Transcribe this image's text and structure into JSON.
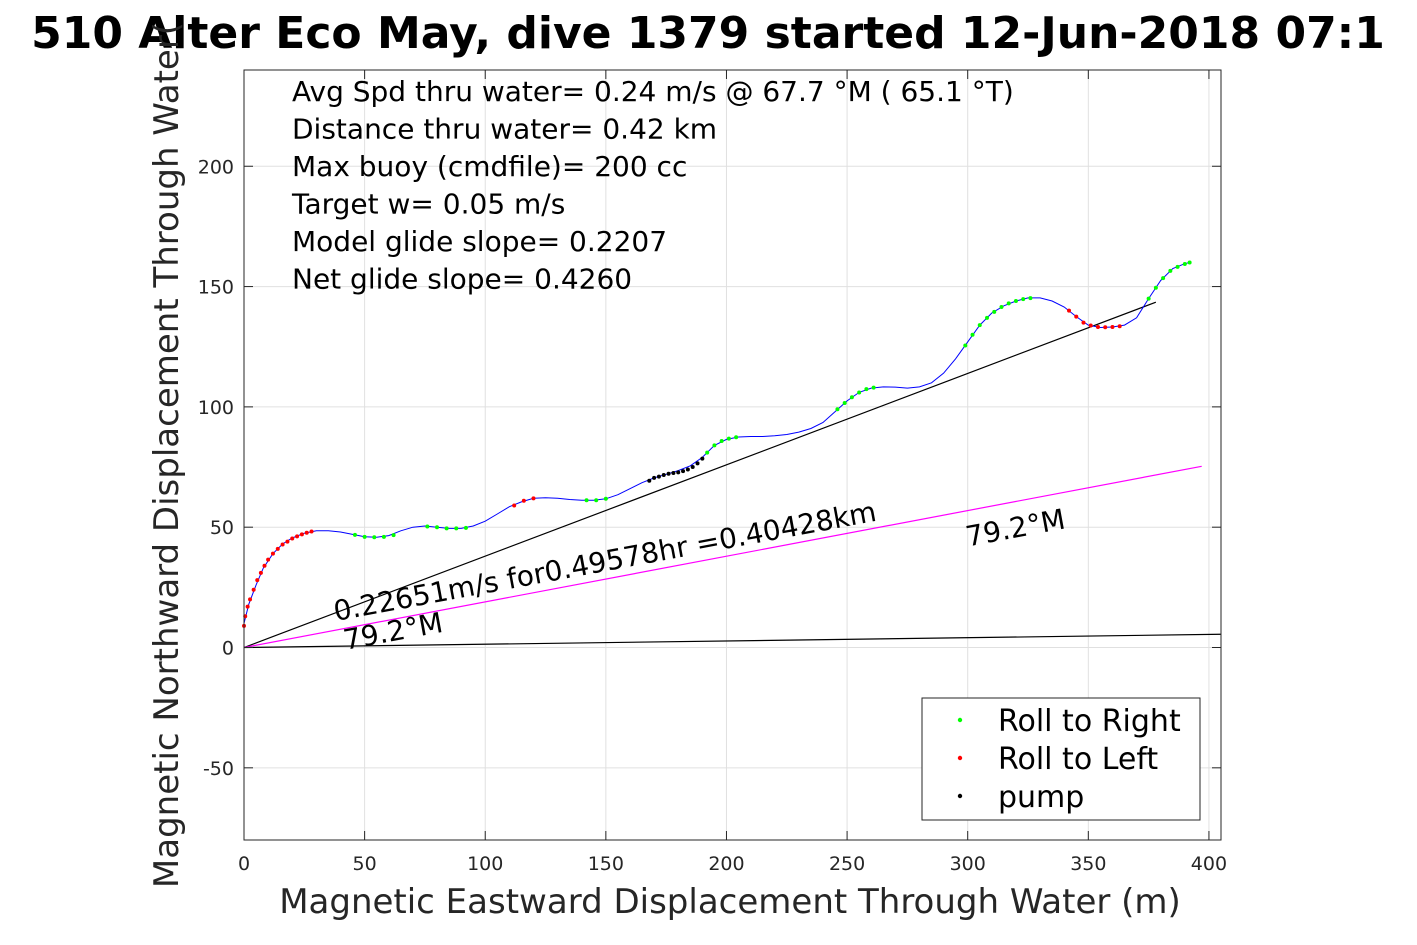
{
  "chart_data": {
    "type": "scatter",
    "title": "510 Alter Eco May, dive 1379 started 12-Jun-2018 07:1",
    "xlabel": "Magnetic Eastward Displacement Through Water (m)",
    "ylabel": "Magnetic Northward Displacement Through Water(",
    "xlim": [
      0,
      405
    ],
    "ylim": [
      -80,
      240
    ],
    "xticks": [
      0,
      50,
      100,
      150,
      200,
      250,
      300,
      350,
      400
    ],
    "yticks": [
      -50,
      0,
      50,
      100,
      150,
      200
    ],
    "grid": true,
    "info_lines": [
      "Avg Spd thru water=  0.24 m/s @  67.7 °M ( 65.1 °T)",
      "Distance thru water=  0.42 km",
      "Max buoy (cmdfile)= 200 cc",
      "Target w= 0.05 m/s",
      "Model glide slope= 0.2207",
      "Net glide slope= 0.4260"
    ],
    "annotations": [
      {
        "text": "0.22651m/s for0.49578hr =0.40428km",
        "x": 38,
        "y": 11,
        "angle_deg": 10.5
      },
      {
        "text": "79.2°M",
        "x": 42,
        "y": -1,
        "angle_deg": 10.5
      },
      {
        "text": "79.2°M",
        "x": 300,
        "y": 42,
        "angle_deg": 10.5
      }
    ],
    "track": {
      "name": "track",
      "color": "#0000ff",
      "points": [
        [
          0,
          0
        ],
        [
          0,
          10
        ],
        [
          2,
          18
        ],
        [
          5,
          26
        ],
        [
          8,
          33
        ],
        [
          12,
          39
        ],
        [
          16,
          43
        ],
        [
          20,
          45.5
        ],
        [
          25,
          47.5
        ],
        [
          30,
          48.5
        ],
        [
          35,
          48.5
        ],
        [
          40,
          48
        ],
        [
          45,
          47
        ],
        [
          50,
          46
        ],
        [
          55,
          45.8
        ],
        [
          60,
          46.5
        ],
        [
          65,
          48.5
        ],
        [
          70,
          50
        ],
        [
          75,
          50.5
        ],
        [
          80,
          50
        ],
        [
          85,
          49.5
        ],
        [
          90,
          49.5
        ],
        [
          95,
          50.5
        ],
        [
          100,
          52.5
        ],
        [
          105,
          55.5
        ],
        [
          110,
          58.5
        ],
        [
          115,
          60.5
        ],
        [
          120,
          62
        ],
        [
          125,
          62.2
        ],
        [
          130,
          62
        ],
        [
          135,
          61.5
        ],
        [
          140,
          61.2
        ],
        [
          145,
          61.2
        ],
        [
          150,
          61.8
        ],
        [
          155,
          63.5
        ],
        [
          160,
          66
        ],
        [
          165,
          68.5
        ],
        [
          170,
          70.5
        ],
        [
          175,
          72
        ],
        [
          180,
          73.5
        ],
        [
          185,
          75.5
        ],
        [
          190,
          79
        ],
        [
          195,
          84
        ],
        [
          200,
          86.5
        ],
        [
          205,
          87.5
        ],
        [
          210,
          87.7
        ],
        [
          215,
          87.7
        ],
        [
          220,
          88
        ],
        [
          225,
          88.5
        ],
        [
          230,
          89.5
        ],
        [
          235,
          91
        ],
        [
          240,
          93.5
        ],
        [
          245,
          98
        ],
        [
          250,
          102.5
        ],
        [
          255,
          106
        ],
        [
          260,
          107.8
        ],
        [
          265,
          108.3
        ],
        [
          270,
          108.2
        ],
        [
          275,
          107.8
        ],
        [
          280,
          108.3
        ],
        [
          285,
          110
        ],
        [
          290,
          114
        ],
        [
          295,
          120
        ],
        [
          300,
          127
        ],
        [
          305,
          134
        ],
        [
          310,
          139
        ],
        [
          315,
          142
        ],
        [
          320,
          144
        ],
        [
          325,
          145.3
        ],
        [
          330,
          145.3
        ],
        [
          335,
          144
        ],
        [
          340,
          141.5
        ],
        [
          345,
          137.5
        ],
        [
          350,
          134
        ],
        [
          355,
          133
        ],
        [
          360,
          133.2
        ],
        [
          365,
          134
        ],
        [
          370,
          137
        ],
        [
          375,
          145
        ],
        [
          380,
          152.5
        ],
        [
          385,
          157.5
        ],
        [
          390,
          159.5
        ],
        [
          392,
          160
        ]
      ]
    },
    "series": [
      {
        "name": "Roll to Right",
        "color": "#00ff00",
        "points": [
          [
            46,
            46.8
          ],
          [
            50,
            46
          ],
          [
            54,
            45.8
          ],
          [
            58,
            46
          ],
          [
            62,
            46.7
          ],
          [
            76,
            50.3
          ],
          [
            80,
            50
          ],
          [
            84,
            49.5
          ],
          [
            88,
            49.5
          ],
          [
            92,
            49.7
          ],
          [
            142,
            61.2
          ],
          [
            146,
            61.2
          ],
          [
            150,
            61.8
          ],
          [
            192,
            81
          ],
          [
            195,
            84
          ],
          [
            198,
            85.8
          ],
          [
            201,
            86.8
          ],
          [
            204,
            87.4
          ],
          [
            246,
            99
          ],
          [
            249,
            101.6
          ],
          [
            252,
            104
          ],
          [
            255,
            106
          ],
          [
            258,
            107.4
          ],
          [
            261,
            108
          ],
          [
            299,
            125.5
          ],
          [
            302,
            130
          ],
          [
            305,
            134
          ],
          [
            308,
            137
          ],
          [
            311,
            139.5
          ],
          [
            314,
            141.5
          ],
          [
            317,
            143
          ],
          [
            320,
            144
          ],
          [
            323,
            144.8
          ],
          [
            326,
            145.2
          ],
          [
            375,
            145
          ],
          [
            378,
            149.5
          ],
          [
            381,
            153.5
          ],
          [
            384,
            156.5
          ],
          [
            387,
            158.2
          ],
          [
            390,
            159.4
          ],
          [
            392,
            160
          ]
        ]
      },
      {
        "name": "Roll to Left",
        "color": "#ff0000",
        "points": [
          [
            0,
            9
          ],
          [
            0.5,
            13
          ],
          [
            1.5,
            17
          ],
          [
            2.5,
            20
          ],
          [
            4,
            24
          ],
          [
            5.5,
            28
          ],
          [
            7,
            31
          ],
          [
            8.5,
            34
          ],
          [
            10,
            36.5
          ],
          [
            12,
            39
          ],
          [
            14,
            41
          ],
          [
            16,
            42.8
          ],
          [
            18,
            44
          ],
          [
            20,
            45.3
          ],
          [
            22,
            46.2
          ],
          [
            24,
            47
          ],
          [
            26,
            47.7
          ],
          [
            28,
            48.2
          ],
          [
            112,
            59
          ],
          [
            116,
            61
          ],
          [
            120,
            62
          ],
          [
            342,
            140
          ],
          [
            345,
            137.5
          ],
          [
            348,
            135
          ],
          [
            351,
            133.8
          ],
          [
            354,
            133.2
          ],
          [
            357,
            133.1
          ],
          [
            360,
            133.2
          ],
          [
            363,
            133.5
          ]
        ]
      },
      {
        "name": "pump",
        "color": "#000000",
        "points": [
          [
            168,
            69.3
          ],
          [
            170,
            70.5
          ],
          [
            172,
            71
          ],
          [
            174,
            71.7
          ],
          [
            176,
            72.2
          ],
          [
            178,
            72.5
          ],
          [
            180,
            72.8
          ],
          [
            182,
            73.3
          ],
          [
            184,
            74
          ],
          [
            186,
            75
          ],
          [
            188,
            76.5
          ],
          [
            190,
            78.5
          ]
        ]
      }
    ],
    "reference_lines": [
      {
        "from": [
          0,
          0
        ],
        "to": [
          378,
          143.5
        ],
        "color": "#000000"
      },
      {
        "from": [
          0,
          0
        ],
        "to": [
          397,
          75.3
        ],
        "color": "#ff00ff"
      },
      {
        "from": [
          0,
          0
        ],
        "to": [
          405,
          5.5
        ],
        "color": "#000000"
      }
    ],
    "legend": {
      "position": "bottom-right",
      "entries": [
        "Roll to Right",
        "Roll to Left",
        "pump"
      ]
    }
  }
}
